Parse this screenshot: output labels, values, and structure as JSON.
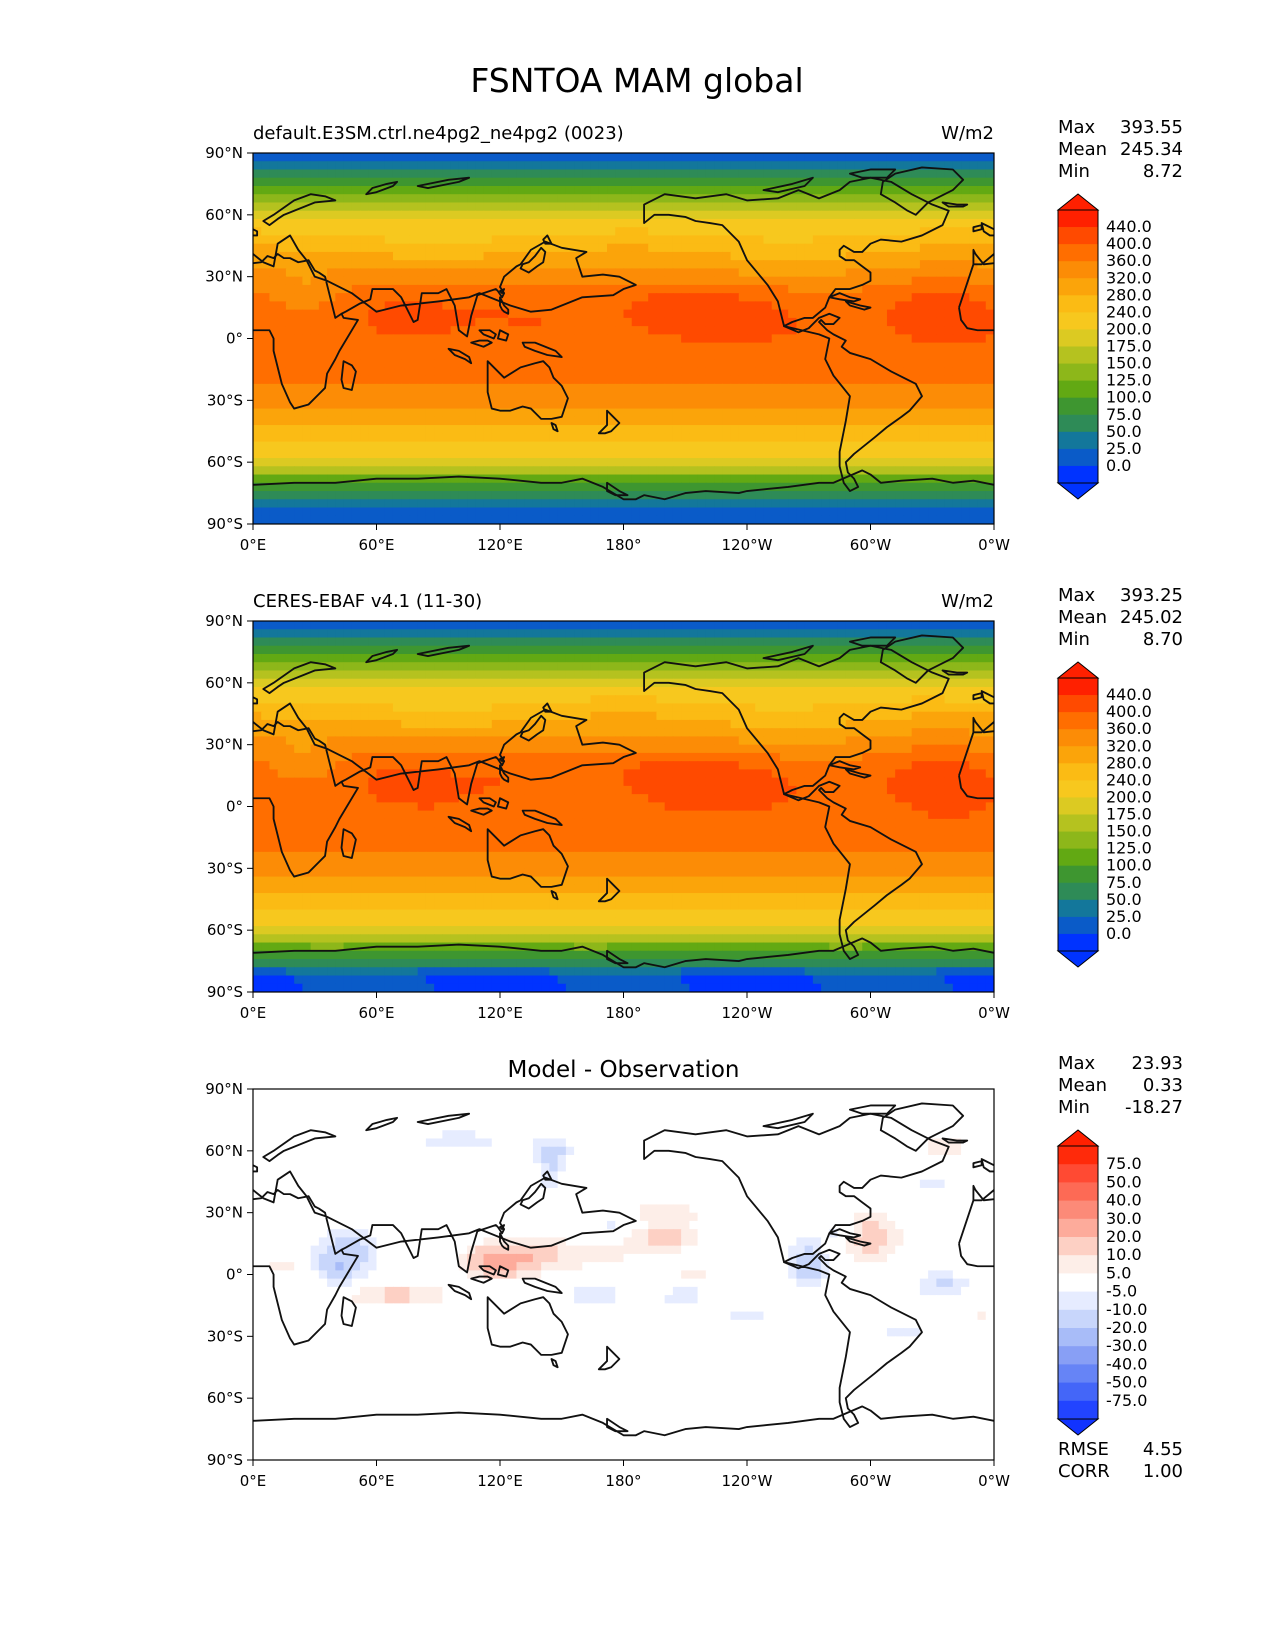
{
  "figure": {
    "title": "FSNTOA MAM global"
  },
  "lon_ticks": [
    "0°E",
    "60°E",
    "120°E",
    "180°",
    "120°W",
    "60°W",
    "0°W"
  ],
  "lat_ticks": [
    "90°N",
    "60°N",
    "30°N",
    "0°",
    "30°S",
    "60°S",
    "90°S"
  ],
  "panels": [
    {
      "id": "model",
      "title_left": "default.E3SM.ctrl.ne4pg2_ne4pg2 (0023)",
      "title_center": "",
      "units": "W/m2",
      "field": "fsntoa",
      "stats": [
        {
          "label": "Max",
          "value": "393.55"
        },
        {
          "label": "Mean",
          "value": "245.34"
        },
        {
          "label": "Min",
          "value": "8.72"
        }
      ],
      "colorbar_labels": [
        "440.0",
        "400.0",
        "360.0",
        "320.0",
        "280.0",
        "240.0",
        "200.0",
        "175.0",
        "150.0",
        "125.0",
        "100.0",
        "75.0",
        "50.0",
        "25.0",
        "0.0"
      ],
      "colorbar_colors": [
        "#ff2000",
        "#ff4a00",
        "#ff6e00",
        "#fc8c06",
        "#fba40a",
        "#fbbb14",
        "#f7c81e",
        "#dcca22",
        "#b5c21f",
        "#8db71a",
        "#62a913",
        "#3e9630",
        "#2e8b57",
        "#13779b",
        "#0a5bc8",
        "#0033ff"
      ],
      "extend_min": "#0033ff",
      "extend_max": "#ff2000"
    },
    {
      "id": "obs",
      "title_left": "CERES-EBAF v4.1 (11-30)",
      "title_center": "",
      "units": "W/m2",
      "field": "fsntoa",
      "stats": [
        {
          "label": "Max",
          "value": "393.25"
        },
        {
          "label": "Mean",
          "value": "245.02"
        },
        {
          "label": "Min",
          "value": "8.70"
        }
      ],
      "colorbar_labels": [
        "440.0",
        "400.0",
        "360.0",
        "320.0",
        "280.0",
        "240.0",
        "200.0",
        "175.0",
        "150.0",
        "125.0",
        "100.0",
        "75.0",
        "50.0",
        "25.0",
        "0.0"
      ],
      "colorbar_colors": [
        "#ff2000",
        "#ff4a00",
        "#ff6e00",
        "#fc8c06",
        "#fba40a",
        "#fbbb14",
        "#f7c81e",
        "#dcca22",
        "#b5c21f",
        "#8db71a",
        "#62a913",
        "#3e9630",
        "#2e8b57",
        "#13779b",
        "#0a5bc8",
        "#0033ff"
      ],
      "extend_min": "#0033ff",
      "extend_max": "#ff2000"
    },
    {
      "id": "diff",
      "title_left": "",
      "title_center": "Model - Observation",
      "units": "",
      "field": "diff",
      "stats": [
        {
          "label": "Max",
          "value": "23.93"
        },
        {
          "label": "Mean",
          "value": "0.33"
        },
        {
          "label": "Min",
          "value": "-18.27"
        }
      ],
      "colorbar_labels": [
        "75.0",
        "50.0",
        "40.0",
        "30.0",
        "20.0",
        "10.0",
        "5.0",
        "-5.0",
        "-10.0",
        "-20.0",
        "-30.0",
        "-40.0",
        "-50.0",
        "-75.0"
      ],
      "colorbar_colors": [
        "#ff2a0a",
        "#ff4a33",
        "#fd6a55",
        "#fc8a78",
        "#fdab9b",
        "#fdd0c4",
        "#fdeee8",
        "#ffffff",
        "#e6ecff",
        "#c8d6fb",
        "#a8bcf8",
        "#889ff5",
        "#6684f6",
        "#4466f8",
        "#2244ff"
      ],
      "extend_min": "#1133ff",
      "extend_max": "#ff2000",
      "extra_stats": [
        {
          "label": "RMSE",
          "value": "4.55"
        },
        {
          "label": "CORR",
          "value": "1.00"
        }
      ]
    }
  ]
}
